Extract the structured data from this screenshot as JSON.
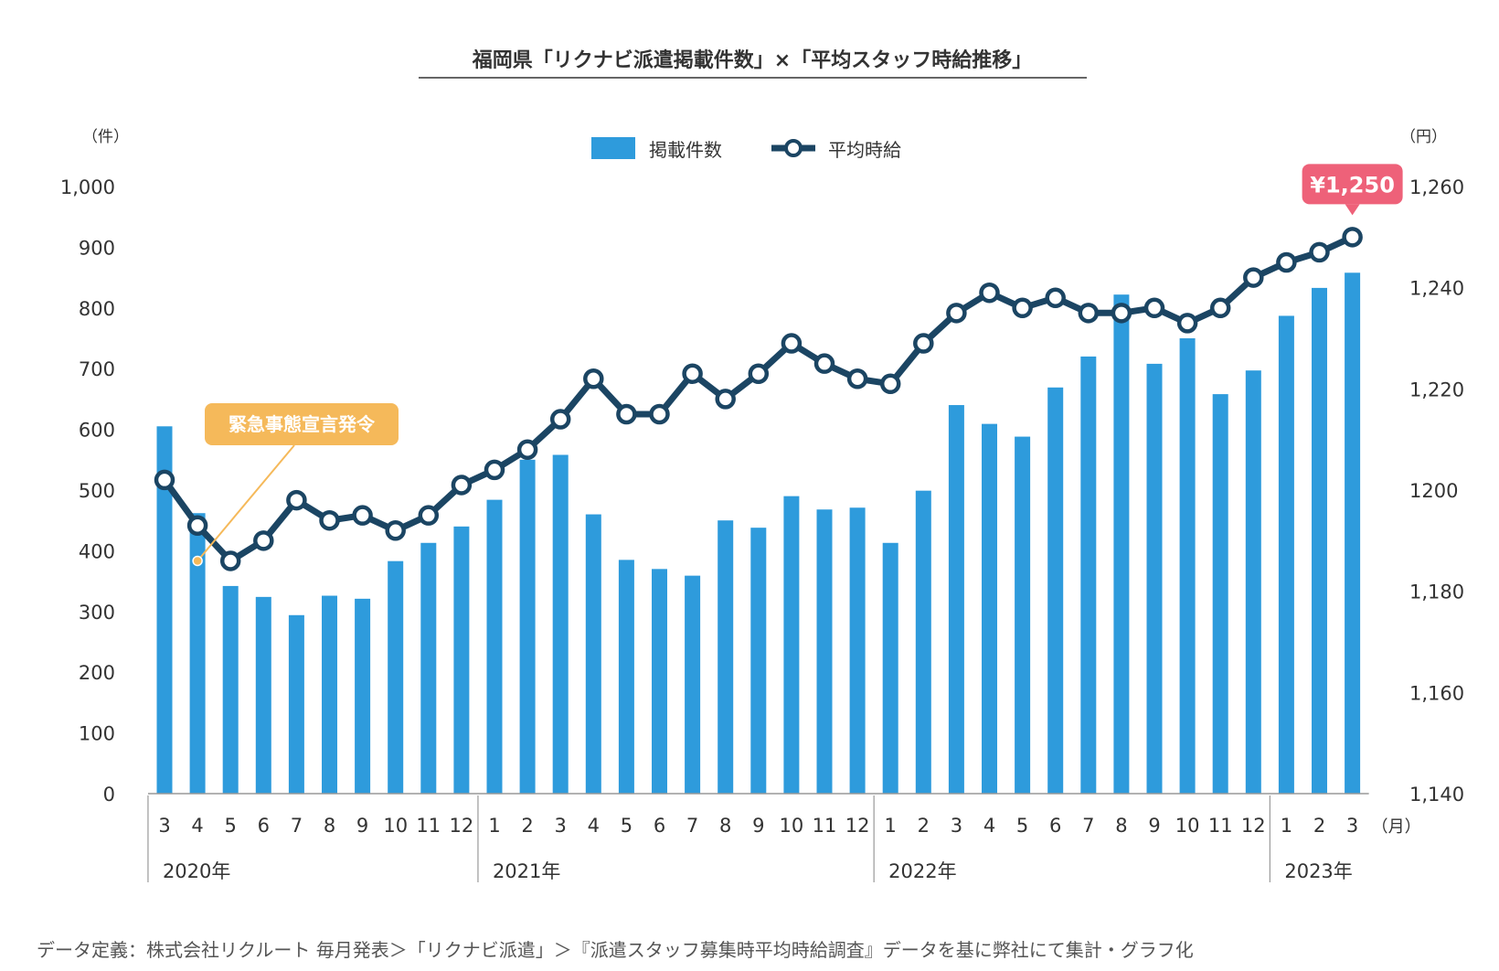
{
  "chart_data": {
    "type": "bar",
    "title": "福岡県「リクナビ派遣掲載件数」×「平均スタッフ時給推移」",
    "y_left_unit": "（件）",
    "y_right_unit": "（円）",
    "x_unit": "（月）",
    "y_left_ticks": [
      "0",
      "100",
      "200",
      "300",
      "400",
      "500",
      "600",
      "700",
      "800",
      "900",
      "1,000"
    ],
    "y_right_ticks": [
      "1,140",
      "1,160",
      "1,180",
      "1200",
      "1,220",
      "1,240",
      "1,260"
    ],
    "ylim_left": [
      0,
      1000
    ],
    "ylim_right": [
      1140,
      1260
    ],
    "categories": [
      "3",
      "4",
      "5",
      "6",
      "7",
      "8",
      "9",
      "10",
      "11",
      "12",
      "1",
      "2",
      "3",
      "4",
      "5",
      "6",
      "7",
      "8",
      "9",
      "10",
      "11",
      "12",
      "1",
      "2",
      "3",
      "4",
      "5",
      "6",
      "7",
      "8",
      "9",
      "10",
      "11",
      "12",
      "1",
      "2",
      "3"
    ],
    "years": [
      {
        "label": "2020年",
        "start": 0,
        "end": 9
      },
      {
        "label": "2021年",
        "start": 10,
        "end": 21
      },
      {
        "label": "2022年",
        "start": 22,
        "end": 33
      },
      {
        "label": "2023年",
        "start": 34,
        "end": 36
      }
    ],
    "series": [
      {
        "name": "掲載件数",
        "type": "bar",
        "axis": "left",
        "color": "#2e9bdc",
        "values": [
          605,
          462,
          342,
          324,
          294,
          326,
          321,
          383,
          413,
          440,
          484,
          550,
          558,
          460,
          385,
          370,
          359,
          450,
          438,
          490,
          468,
          471,
          413,
          499,
          640,
          609,
          588,
          669,
          720,
          822,
          708,
          750,
          658,
          697,
          787,
          833,
          858
        ]
      },
      {
        "name": "平均時給",
        "type": "line",
        "axis": "right",
        "color": "#1b4563",
        "values": [
          1202,
          1193,
          1186,
          1190,
          1198,
          1194,
          1195,
          1192,
          1195,
          1201,
          1204,
          1208,
          1214,
          1222,
          1215,
          1215,
          1223,
          1218,
          1223,
          1229,
          1225,
          1222,
          1221,
          1229,
          1235,
          1239,
          1236,
          1238,
          1235,
          1235,
          1236,
          1233,
          1236,
          1242,
          1245,
          1247,
          1250
        ]
      }
    ],
    "annotations": [
      {
        "text": "緊急事態宣言発令",
        "index": 1,
        "value": 1186,
        "color": "#f5b95a"
      },
      {
        "text": "¥1,250",
        "index": 36,
        "value": 1250,
        "color": "#ee6179"
      }
    ],
    "legend_position": "top-center",
    "grid": false
  },
  "footer": "データ定義：株式会社リクルート 毎月発表＞「リクナビ派遣」＞『派遣スタッフ募集時平均時給調査』データを基に弊社にて集計・グラフ化"
}
